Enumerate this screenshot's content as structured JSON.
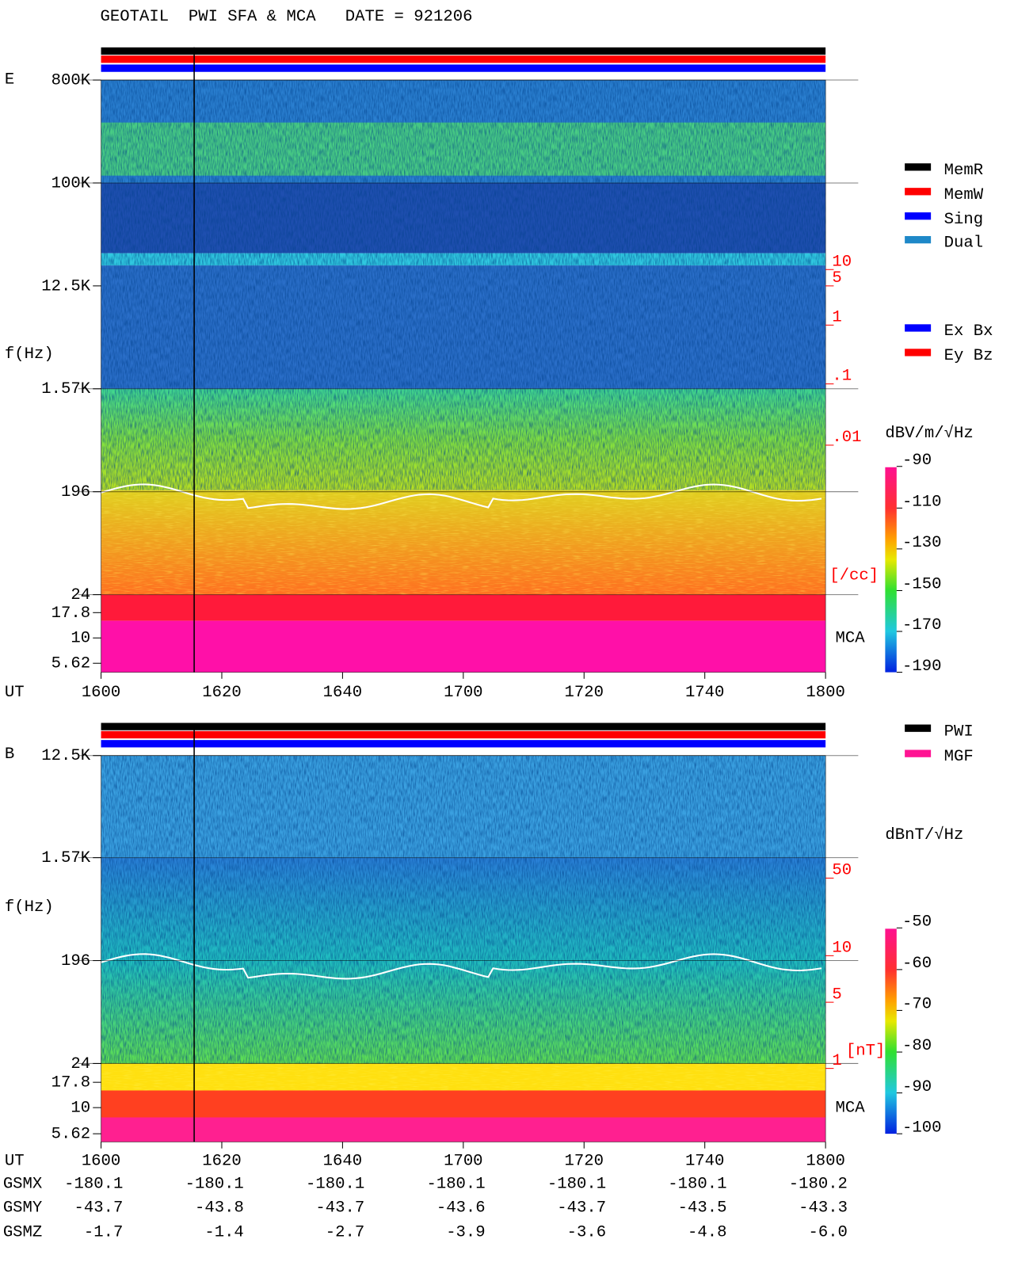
{
  "title": "GEOTAIL  PWI SFA & MCA   DATE = 921206",
  "panels": [
    {
      "label": "E",
      "y_label": "f(Hz)",
      "freq_ticks": [
        "800K",
        "100K",
        "12.5K",
        "1.57K",
        "196",
        "24",
        "17.8",
        "10",
        "5.62"
      ],
      "density_ticks": [
        "10",
        "5",
        "1",
        ".1",
        ".01"
      ],
      "density_unit": "[/cc]",
      "mca_label": "MCA",
      "time_axis_label": "UT",
      "time_ticks": [
        "1600",
        "1620",
        "1640",
        "1700",
        "1720",
        "1740",
        "1800"
      ],
      "legend": [
        {
          "name": "MemR",
          "color": "#000000"
        },
        {
          "name": "MemW",
          "color": "#ff0000"
        },
        {
          "name": "Sing",
          "color": "#0000ff"
        },
        {
          "name": "Dual",
          "color": "#1e88c8"
        }
      ],
      "legend2": [
        {
          "name": "Ex Bx",
          "color": "#0000ff"
        },
        {
          "name": "Ey Bz",
          "color": "#ff0000"
        }
      ],
      "colorbar_label": "dBV/m/√Hz",
      "colorbar_ticks": [
        "-90",
        "-110",
        "-130",
        "-150",
        "-170",
        "-190"
      ]
    },
    {
      "label": "B",
      "y_label": "f(Hz)",
      "freq_ticks": [
        "12.5K",
        "1.57K",
        "196",
        "24",
        "17.8",
        "10",
        "5.62"
      ],
      "density_ticks": [
        "50",
        "10",
        "5",
        "1"
      ],
      "density_unit": "[nT]",
      "mca_label": "MCA",
      "time_axis_label": "UT",
      "time_ticks": [
        "1600",
        "1620",
        "1640",
        "1700",
        "1720",
        "1740",
        "1800"
      ],
      "legend": [
        {
          "name": "PWI",
          "color": "#000000"
        },
        {
          "name": "MGF",
          "color": "#ff1493"
        }
      ],
      "colorbar_label": "dBnT/√Hz",
      "colorbar_ticks": [
        "-50",
        "-60",
        "-70",
        "-80",
        "-90",
        "-100"
      ]
    }
  ],
  "orbit": [
    {
      "label": "GSMX",
      "values": [
        "-180.1",
        "-180.1",
        "-180.1",
        "-180.1",
        "-180.1",
        "-180.1",
        "-180.2"
      ]
    },
    {
      "label": "GSMY",
      "values": [
        "-43.7",
        "-43.8",
        "-43.7",
        "-43.6",
        "-43.7",
        "-43.5",
        "-43.3"
      ]
    },
    {
      "label": "GSMZ",
      "values": [
        "-1.7",
        "-1.4",
        "-2.7",
        "-3.9",
        "-3.6",
        "-4.8",
        "-6.0"
      ]
    }
  ]
}
